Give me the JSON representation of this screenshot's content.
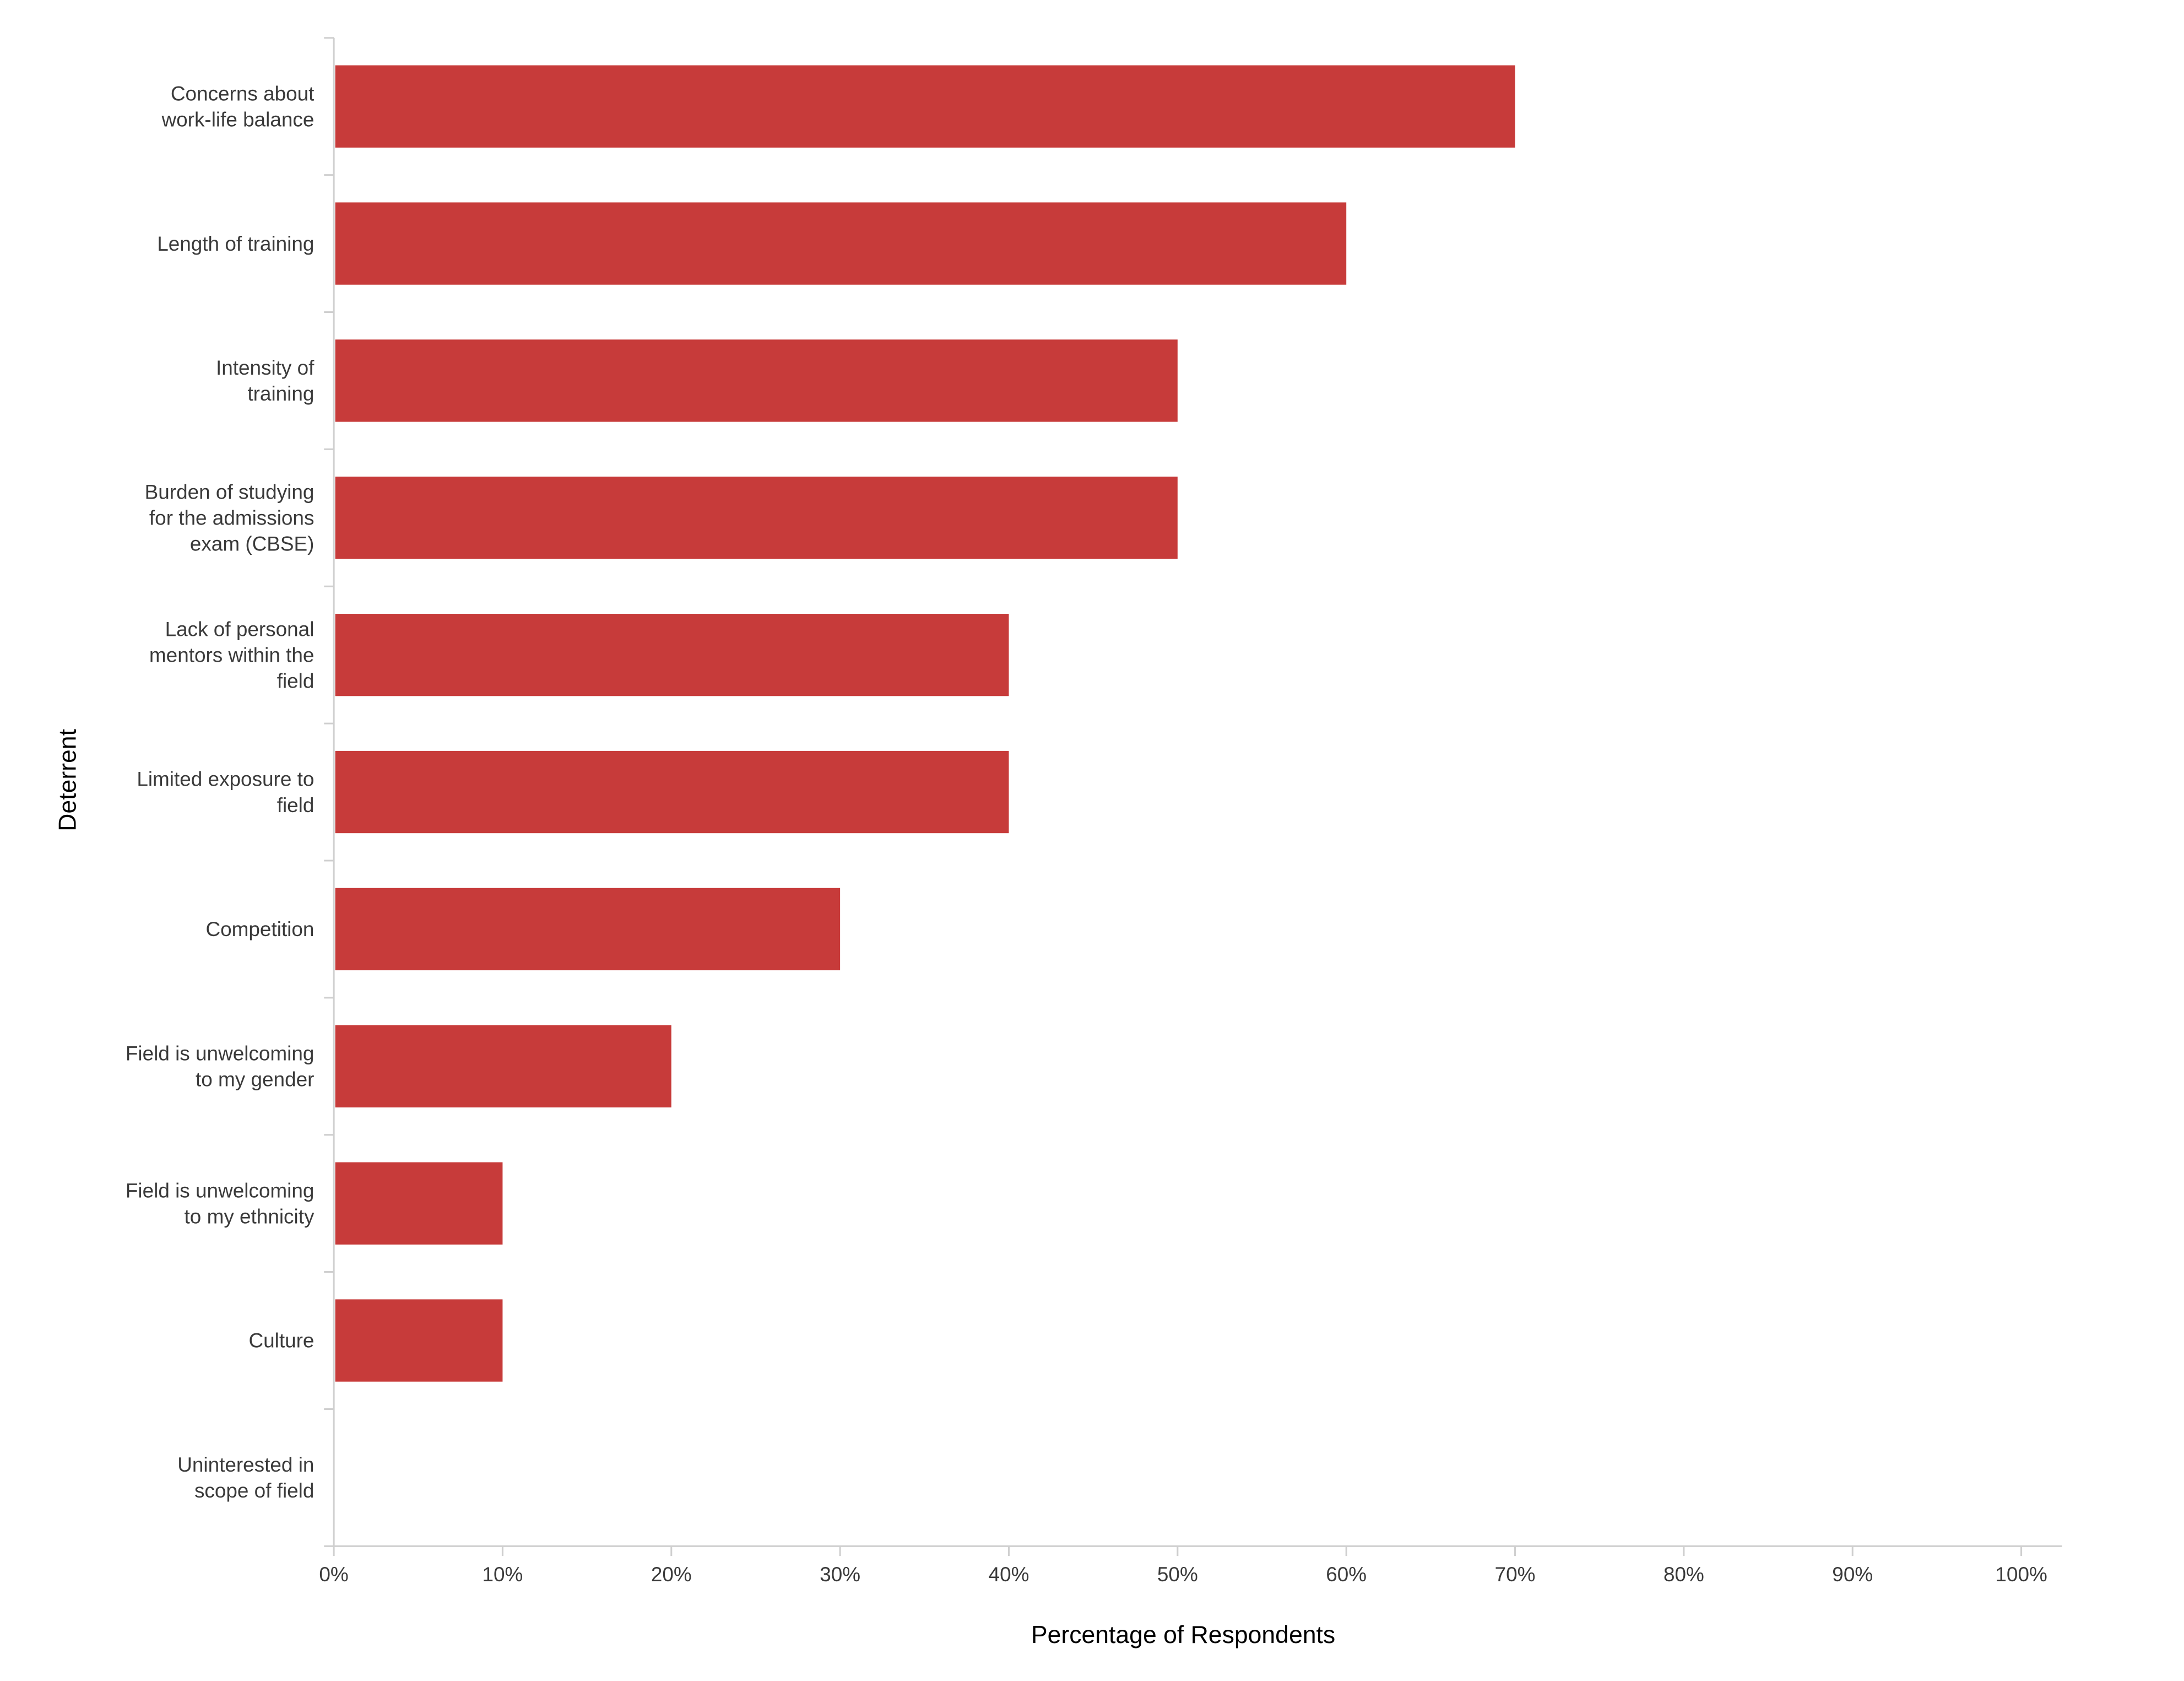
{
  "chart_data": {
    "type": "bar",
    "orientation": "horizontal",
    "title": "",
    "xlabel": "Percentage of Respondents",
    "ylabel": "Deterrent",
    "xlim": [
      0,
      100
    ],
    "x_ticks": [
      "0%",
      "10%",
      "20%",
      "30%",
      "40%",
      "50%",
      "60%",
      "70%",
      "80%",
      "90%",
      "100%"
    ],
    "grid": false,
    "legend": "none",
    "bar_color": "#c73b3a",
    "categories": [
      [
        "Concerns about",
        "work-life balance"
      ],
      [
        "Length of training"
      ],
      [
        "Intensity of",
        "training"
      ],
      [
        "Burden of studying",
        "for the admissions",
        "exam (CBSE)"
      ],
      [
        "Lack of personal",
        "mentors within the",
        "field"
      ],
      [
        "Limited exposure to",
        "field"
      ],
      [
        "Competition"
      ],
      [
        "Field is unwelcoming",
        "to my gender"
      ],
      [
        "Field is unwelcoming",
        "to my ethnicity"
      ],
      [
        "Culture"
      ],
      [
        "Uninterested in",
        "scope of field"
      ]
    ],
    "values": [
      70,
      60,
      50,
      50,
      40,
      40,
      30,
      20,
      10,
      10,
      0
    ]
  }
}
